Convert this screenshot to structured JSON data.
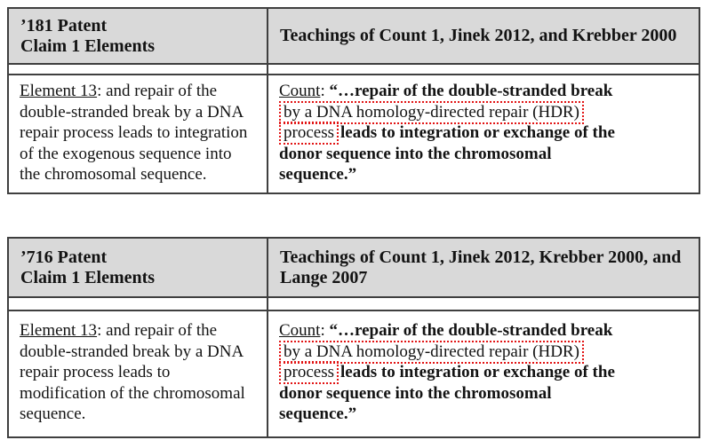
{
  "colors": {
    "page_bg": "#ffffff",
    "header_bg": "#d9d9d9",
    "border": "#3f3f3f",
    "text": "#131313",
    "highlight_box": "#e21414"
  },
  "tables": [
    {
      "header": {
        "left_line1": "’181 Patent",
        "left_line2": "Claim 1 Elements",
        "right_line1": "Teachings of Count 1, Jinek 2012, and Krebber 2000"
      },
      "left_cell": {
        "label": "Element 13",
        "lines": [
          ": and repair of the",
          "double-stranded break by a DNA",
          "repair process leads to integration",
          "of the exogenous sequence into",
          "the chromosomal sequence."
        ]
      },
      "right_cell": {
        "label": "Count",
        "colon": ": ",
        "quote_open": "“…",
        "line1_bold": "repair of the double-stranded break",
        "boxed_phrase_1": "by a DNA homology-directed repair (HDR)",
        "boxed_phrase_2": "process",
        "after_lines": [
          "leads to integration or exchange of the",
          "donor sequence into the chromosomal",
          "sequence.”"
        ]
      }
    },
    {
      "header": {
        "left_line1": "’716 Patent",
        "left_line2": "Claim 1 Elements",
        "right_line1": "Teachings of Count 1, Jinek 2012, Krebber 2000, and",
        "right_line2": "Lange 2007"
      },
      "left_cell": {
        "label": "Element 13",
        "lines": [
          ": and repair of the",
          "double-stranded break by a DNA",
          "repair process leads to",
          "modification of the chromosomal",
          "sequence."
        ]
      },
      "right_cell": {
        "label": "Count",
        "colon": ": ",
        "quote_open": "“…",
        "line1_bold": "repair of the double-stranded break",
        "boxed_phrase_1": "by a DNA homology-directed repair (HDR)",
        "boxed_phrase_2": "process",
        "after_lines": [
          "leads to integration or exchange of the",
          "donor sequence into the chromosomal",
          "sequence.”"
        ]
      }
    }
  ]
}
